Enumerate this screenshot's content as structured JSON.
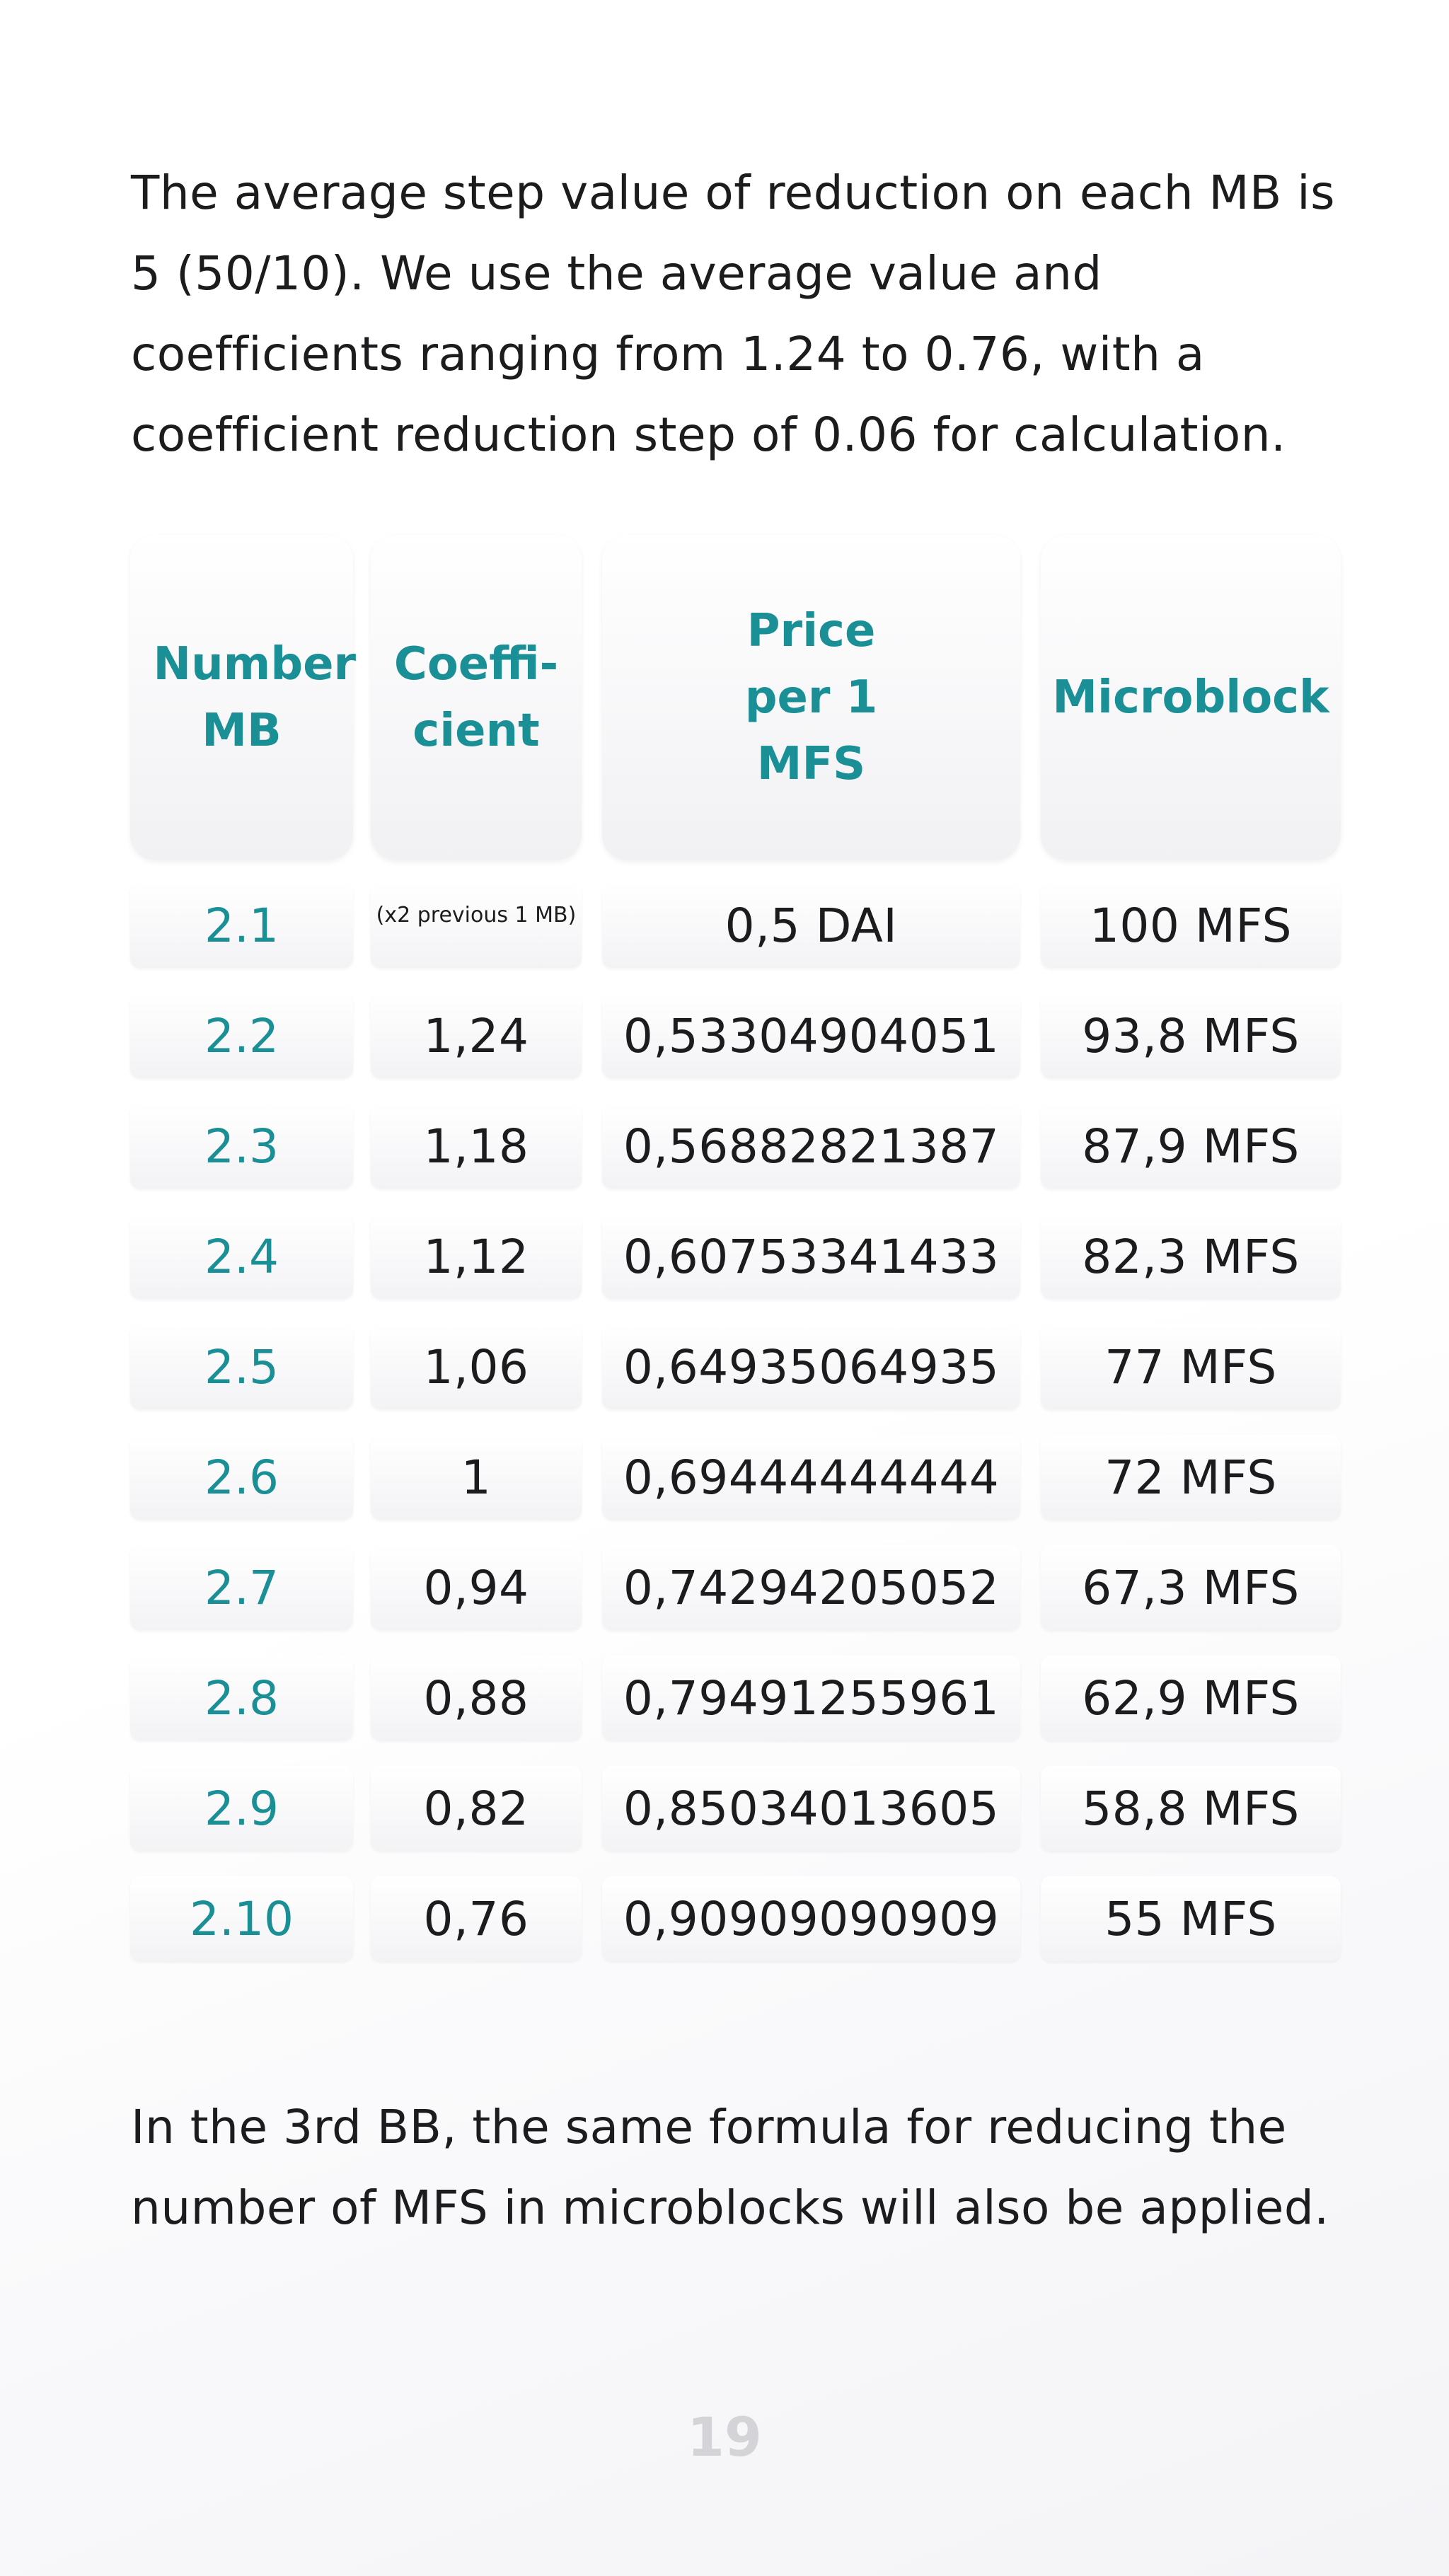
{
  "intro": "The average step value of reduction on each MB is 5 (50/10). We use the average value and coefficients ranging from 1.24 to 0.76, with a coefficient reduction step of 0.06 for calculation.",
  "table": {
    "headers": [
      "Number MB",
      "Coeffi-cient",
      "Price per 1 MFS",
      "Microblock"
    ],
    "rows": [
      {
        "mb": "2.1",
        "coef": "(x2 previous 1 MB)",
        "price": "0,5 DAI",
        "micro": "100 MFS"
      },
      {
        "mb": "2.2",
        "coef": "1,24",
        "price": "0,53304904051",
        "micro": "93,8 MFS"
      },
      {
        "mb": "2.3",
        "coef": "1,18",
        "price": "0,56882821387",
        "micro": "87,9 MFS"
      },
      {
        "mb": "2.4",
        "coef": "1,12",
        "price": "0,60753341433",
        "micro": "82,3 MFS"
      },
      {
        "mb": "2.5",
        "coef": "1,06",
        "price": "0,64935064935",
        "micro": "77 MFS"
      },
      {
        "mb": "2.6",
        "coef": "1",
        "price": "0,69444444444",
        "micro": "72 MFS"
      },
      {
        "mb": "2.7",
        "coef": "0,94",
        "price": "0,74294205052",
        "micro": "67,3 MFS"
      },
      {
        "mb": "2.8",
        "coef": "0,88",
        "price": "0,79491255961",
        "micro": "62,9 MFS"
      },
      {
        "mb": "2.9",
        "coef": "0,82",
        "price": "0,85034013605",
        "micro": "58,8 MFS"
      },
      {
        "mb": "2.10",
        "coef": "0,76",
        "price": "0,90909090909",
        "micro": "55 MFS"
      }
    ]
  },
  "outro": "In the 3rd BB, the same formula for reducing the number of MFS in microblocks will also be applied.",
  "page_number": "19",
  "colors": {
    "accent": "#1a8f96",
    "text": "#1c1c1e",
    "page_number": "#d4d4d8"
  }
}
